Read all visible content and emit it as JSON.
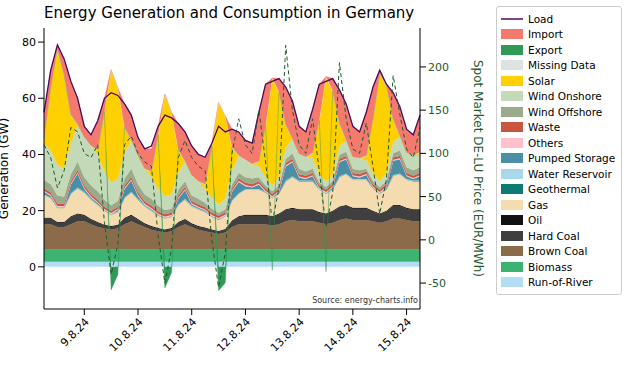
{
  "chart_data": {
    "type": "area",
    "title": "Energy Generation and Consumption in Germany",
    "y_label": "Generation (GW)",
    "y2_label": "Spot Market DE-LU Price (EUR/MWh)",
    "annotation": "Source: energy-charts.info",
    "stacked": true,
    "grid": false,
    "legend": "right",
    "ylim": [
      -15,
      85
    ],
    "yticks": [
      0,
      20,
      40,
      60,
      80
    ],
    "y2lim": [
      -80,
      245
    ],
    "y2ticks": [
      -50,
      0,
      50,
      100,
      150,
      200
    ],
    "categories": [
      null,
      null,
      null,
      null,
      null,
      null,
      "9.8.24",
      null,
      null,
      null,
      null,
      null,
      null,
      null,
      "10.8.24",
      null,
      null,
      null,
      null,
      null,
      null,
      null,
      "11.8.24",
      null,
      null,
      null,
      null,
      null,
      null,
      null,
      "12.8.24",
      null,
      null,
      null,
      null,
      null,
      null,
      null,
      "13.8.24",
      null,
      null,
      null,
      null,
      null,
      null,
      null,
      "14.8.24",
      null,
      null,
      null,
      null,
      null,
      null,
      null,
      "15.8.24",
      null,
      null
    ],
    "series": [
      {
        "name": "Load",
        "type": "line",
        "color": "#4b0a5e",
        "values": [
          55,
          70,
          79,
          74,
          66,
          60,
          50,
          47,
          52,
          60,
          62,
          61,
          58,
          54,
          46,
          42,
          43,
          50,
          54,
          53,
          51,
          48,
          43,
          40,
          39,
          44,
          50,
          48,
          49,
          48,
          45,
          44,
          55,
          65,
          66,
          67,
          64,
          59,
          50,
          48,
          56,
          65,
          66,
          67,
          63,
          58,
          50,
          48,
          55,
          64,
          70,
          65,
          62,
          57,
          49,
          47,
          54
        ]
      },
      {
        "name": "Import",
        "type": "area",
        "color": "#f47a6e",
        "values": [
          9.3,
          6.3,
          1.3,
          5.8,
          11.8,
          9.3,
          3.8,
          3.8,
          10.3,
          4.8,
          0,
          0,
          8.3,
          8.8,
          6.3,
          7,
          8,
          3,
          0,
          0,
          9.3,
          10.3,
          10.3,
          9.5,
          9.5,
          1,
          0,
          0,
          6.3,
          8.3,
          6.8,
          7.3,
          17.4,
          14.8,
          0,
          4.8,
          13.3,
          13.3,
          9.8,
          8.8,
          15.4,
          12.8,
          0,
          4.3,
          11.8,
          12.8,
          10.8,
          9.3,
          15.4,
          11.3,
          1.3,
          0.3,
          9.3,
          10.3,
          8.3,
          7.3,
          13.1
        ]
      },
      {
        "name": "Export",
        "type": "area",
        "color": "#2e9a55",
        "values": [
          0,
          0,
          0,
          0,
          0,
          0,
          0,
          0,
          0,
          0,
          -8.2,
          -2.7,
          0,
          0,
          0,
          0,
          0,
          0,
          -7.5,
          -2,
          0,
          0,
          0,
          0,
          0,
          0,
          -8.5,
          -5.7,
          0,
          0,
          0,
          0,
          0,
          0,
          -1.2,
          0,
          0,
          0,
          0,
          0,
          0,
          0,
          -1.7,
          0,
          0,
          0,
          0,
          0,
          0,
          0,
          0,
          0,
          0,
          0,
          0,
          0,
          0
        ]
      },
      {
        "name": "Missing Data",
        "type": "area",
        "color": "#dde3e3",
        "values": [
          0.3,
          0.3,
          0.3,
          0.3,
          0.3,
          0.3,
          0.3,
          0.3,
          0.3,
          0.3,
          0.3,
          0.3,
          0.3,
          0.3,
          0.3,
          0.3,
          0.3,
          0.3,
          0.3,
          0.3,
          0.3,
          0.3,
          0.3,
          0.3,
          0.3,
          0.3,
          0.3,
          0.3,
          0.3,
          0.3,
          0.3,
          0.3,
          0.3,
          0.3,
          0.3,
          0.3,
          0.3,
          0.3,
          0.3,
          0.3,
          0.3,
          0.3,
          0.3,
          0.3,
          0.3,
          0.3,
          0.3,
          0.3,
          0.3,
          0.3,
          0.3,
          0.3,
          0.3,
          0.3,
          0.3,
          0.3,
          0.3
        ]
      },
      {
        "name": "Solar",
        "type": "area",
        "color": "#ffd000",
        "values": [
          1.5,
          22,
          41,
          33,
          10,
          0,
          0,
          0,
          1.5,
          21,
          40,
          32,
          9,
          0,
          0,
          0,
          1.5,
          19,
          36,
          29,
          8,
          0,
          0,
          0,
          1.5,
          18,
          36,
          29,
          8,
          0,
          0,
          0,
          1.4,
          18,
          38,
          30,
          8,
          0,
          0,
          0,
          1.4,
          19,
          37,
          30,
          8,
          0,
          0,
          0,
          1.4,
          19,
          38,
          31,
          8,
          0,
          0,
          0,
          1.2
        ]
      },
      {
        "name": "Wind Onshore",
        "type": "area",
        "color": "#c4d9b8",
        "values": [
          13,
          12,
          11,
          10,
          11,
          13,
          14,
          14,
          13,
          10,
          8,
          8,
          9,
          10,
          10,
          9,
          8,
          6,
          5,
          5,
          6,
          7,
          7,
          6,
          5,
          4,
          3,
          4,
          5,
          6,
          6,
          5,
          4,
          3,
          2,
          3,
          4,
          5,
          5,
          5,
          4,
          3,
          2,
          2,
          3,
          4,
          4,
          4,
          3,
          3,
          2,
          3,
          4,
          5,
          5,
          5,
          4
        ]
      },
      {
        "name": "Wind Offshore",
        "type": "area",
        "color": "#9caa8c",
        "values": [
          3,
          3,
          3,
          2.5,
          2.5,
          3,
          3,
          3,
          3,
          2.5,
          2,
          2,
          2.5,
          3,
          3,
          2.5,
          2.5,
          2,
          1.5,
          1.5,
          2,
          2,
          2,
          2,
          1.5,
          1.5,
          1,
          1,
          1.5,
          2,
          2,
          2,
          1.5,
          1,
          1,
          1,
          1.5,
          2,
          2,
          1.5,
          1.5,
          1,
          1,
          1,
          1.5,
          1.5,
          1.5,
          1.5,
          1,
          1,
          1,
          1,
          1.5,
          2,
          2,
          2,
          2
        ]
      },
      {
        "name": "Waste",
        "type": "area",
        "color": "#c8553d",
        "values": [
          0.8,
          0.8,
          0.8,
          0.8,
          0.8,
          0.8,
          0.8,
          0.8,
          0.8,
          0.8,
          0.8,
          0.8,
          0.8,
          0.8,
          0.8,
          0.8,
          0.8,
          0.8,
          0.8,
          0.8,
          0.8,
          0.8,
          0.8,
          0.8,
          0.8,
          0.8,
          0.8,
          0.8,
          0.8,
          0.8,
          0.8,
          0.8,
          0.8,
          0.8,
          0.8,
          0.8,
          0.8,
          0.8,
          0.8,
          0.8,
          0.8,
          0.8,
          0.8,
          0.8,
          0.8,
          0.8,
          0.8,
          0.8,
          0.8,
          0.8,
          0.8,
          0.8,
          0.8,
          0.8,
          0.8,
          0.8,
          0.8
        ]
      },
      {
        "name": "Others",
        "type": "area",
        "color": "#ffc0cb",
        "values": [
          0.4,
          0.4,
          0.4,
          0.4,
          0.4,
          0.4,
          0.4,
          0.4,
          0.4,
          0.4,
          0.4,
          0.4,
          0.4,
          0.4,
          0.4,
          0.4,
          0.4,
          0.4,
          0.4,
          0.4,
          0.4,
          0.4,
          0.4,
          0.4,
          0.4,
          0.4,
          0.4,
          0.4,
          0.4,
          0.4,
          0.4,
          0.4,
          0.4,
          0.4,
          0.4,
          0.4,
          0.4,
          0.4,
          0.4,
          0.4,
          0.4,
          0.4,
          0.4,
          0.4,
          0.4,
          0.4,
          0.4,
          0.4,
          0.4,
          0.4,
          0.4,
          0.4,
          0.4,
          0.4,
          0.4,
          0.4,
          0.4
        ]
      },
      {
        "name": "Pumped Storage",
        "type": "area",
        "color": "#4b8fa6",
        "values": [
          1,
          0.5,
          0,
          0,
          3,
          5,
          1,
          0.5,
          0.5,
          0,
          0,
          0.5,
          3,
          4,
          1,
          0.3,
          0.3,
          0,
          0,
          0,
          2,
          3,
          0.5,
          0.3,
          0.3,
          0,
          0,
          0,
          3,
          4,
          1,
          0.5,
          1.5,
          0,
          0,
          0.5,
          5,
          5,
          1,
          0.5,
          1.5,
          0,
          0,
          0.5,
          5,
          5,
          1,
          0.5,
          1.5,
          0,
          0,
          0.5,
          5,
          5,
          1,
          0.5,
          1.5
        ]
      },
      {
        "name": "Water Reservoir",
        "type": "area",
        "color": "#a9d8ea",
        "values": [
          0.2,
          0.2,
          0.2,
          0.2,
          0.2,
          0.2,
          0.2,
          0.2,
          0.2,
          0.2,
          0.2,
          0.2,
          0.2,
          0.2,
          0.2,
          0.2,
          0.2,
          0.2,
          0.2,
          0.2,
          0.2,
          0.2,
          0.2,
          0.2,
          0.2,
          0.2,
          0.2,
          0.2,
          0.2,
          0.2,
          0.2,
          0.2,
          0.2,
          0.2,
          0.2,
          0.2,
          0.2,
          0.2,
          0.2,
          0.2,
          0.2,
          0.2,
          0.2,
          0.2,
          0.2,
          0.2,
          0.2,
          0.2,
          0.2,
          0.2,
          0.2,
          0.2,
          0.2,
          0.2,
          0.2,
          0.2,
          0.2
        ]
      },
      {
        "name": "Geothermal",
        "type": "area",
        "color": "#0b7b73",
        "values": [
          0.02,
          0.02,
          0.02,
          0.02,
          0.02,
          0.02,
          0.02,
          0.02,
          0.02,
          0.02,
          0.02,
          0.02,
          0.02,
          0.02,
          0.02,
          0.02,
          0.02,
          0.02,
          0.02,
          0.02,
          0.02,
          0.02,
          0.02,
          0.02,
          0.02,
          0.02,
          0.02,
          0.02,
          0.02,
          0.02,
          0.02,
          0.02,
          0.02,
          0.02,
          0.02,
          0.02,
          0.02,
          0.02,
          0.02,
          0.02,
          0.02,
          0.02,
          0.02,
          0.02,
          0.02,
          0.02,
          0.02,
          0.02,
          0.02,
          0.02,
          0.02,
          0.02,
          0.02,
          0.02,
          0.02,
          0.02,
          0.02
        ]
      },
      {
        "name": "Gas",
        "type": "area",
        "color": "#f5dcb0",
        "values": [
          8,
          7,
          5,
          5,
          8,
          9,
          8,
          7,
          6,
          5,
          4,
          4.5,
          7,
          8,
          7,
          6,
          5.5,
          4.5,
          4,
          4,
          6,
          7,
          6,
          6,
          5.5,
          4.5,
          4,
          4.5,
          7,
          8,
          9,
          9,
          9,
          8,
          6.5,
          7,
          10,
          11,
          10,
          10,
          10,
          8,
          7,
          7.5,
          10.5,
          11,
          10,
          10,
          10,
          8,
          7,
          7.5,
          10.5,
          11,
          10,
          10,
          10
        ]
      },
      {
        "name": "Oil",
        "type": "area",
        "color": "#111111",
        "values": [
          0.3,
          0.3,
          0.3,
          0.3,
          0.3,
          0.3,
          0.3,
          0.3,
          0.3,
          0.3,
          0.3,
          0.3,
          0.3,
          0.3,
          0.3,
          0.3,
          0.3,
          0.3,
          0.3,
          0.3,
          0.3,
          0.3,
          0.3,
          0.3,
          0.3,
          0.3,
          0.3,
          0.3,
          0.3,
          0.3,
          0.3,
          0.3,
          0.3,
          0.3,
          0.3,
          0.3,
          0.3,
          0.3,
          0.3,
          0.3,
          0.3,
          0.3,
          0.3,
          0.3,
          0.3,
          0.3,
          0.3,
          0.3,
          0.3,
          0.3,
          0.3,
          0.3,
          0.3,
          0.3,
          0.3,
          0.3,
          0.3
        ]
      },
      {
        "name": "Hard Coal",
        "type": "area",
        "color": "#3f3f3f",
        "values": [
          2,
          2,
          1.5,
          1.5,
          2.5,
          2.5,
          2,
          1.5,
          1.5,
          1,
          1,
          1,
          2,
          2,
          1.5,
          1,
          1,
          0.8,
          0.8,
          0.8,
          1.5,
          1.5,
          1,
          1,
          1,
          0.8,
          0.8,
          1,
          2,
          2.5,
          3,
          3,
          3,
          3,
          3,
          3.5,
          4,
          4,
          4,
          4,
          4,
          3.5,
          3.5,
          4,
          4.5,
          4.5,
          4,
          4,
          4,
          3.5,
          3,
          3.5,
          4.5,
          4.5,
          4,
          4,
          4
        ]
      },
      {
        "name": "Brown Coal",
        "type": "area",
        "color": "#8b6b4a",
        "values": [
          9,
          9,
          8,
          8,
          9,
          10,
          10,
          9,
          8,
          7.5,
          7,
          7.5,
          9,
          10,
          9,
          8,
          7,
          6.5,
          6,
          6.5,
          8,
          9,
          8,
          7,
          6.5,
          6,
          5.5,
          6,
          8,
          9,
          9,
          9,
          9,
          9,
          8.5,
          9,
          10,
          10.5,
          10,
          10,
          10,
          9.5,
          9,
          9.5,
          10.5,
          11,
          10.5,
          10.5,
          10.5,
          10,
          9.5,
          10,
          11,
          11,
          10.5,
          10,
          10
        ]
      },
      {
        "name": "Biomass",
        "type": "area",
        "color": "#3cb371",
        "values": [
          4.4,
          4.4,
          4.4,
          4.4,
          4.4,
          4.4,
          4.4,
          4.4,
          4.4,
          4.4,
          4.4,
          4.4,
          4.4,
          4.4,
          4.4,
          4.4,
          4.4,
          4.4,
          4.4,
          4.4,
          4.4,
          4.4,
          4.4,
          4.4,
          4.4,
          4.4,
          4.4,
          4.4,
          4.4,
          4.4,
          4.4,
          4.4,
          4.4,
          4.4,
          4.4,
          4.4,
          4.4,
          4.4,
          4.4,
          4.4,
          4.4,
          4.4,
          4.4,
          4.4,
          4.4,
          4.4,
          4.4,
          4.4,
          4.4,
          4.4,
          4.4,
          4.4,
          4.4,
          4.4,
          4.4,
          4.4,
          4.4
        ]
      },
      {
        "name": "Run-of-River",
        "type": "area",
        "color": "#b3ddf5",
        "values": [
          1.8,
          1.8,
          1.8,
          1.8,
          1.8,
          1.8,
          1.8,
          1.8,
          1.8,
          1.8,
          1.8,
          1.8,
          1.8,
          1.8,
          1.8,
          1.8,
          1.8,
          1.8,
          1.8,
          1.8,
          1.8,
          1.8,
          1.8,
          1.8,
          1.8,
          1.8,
          1.8,
          1.8,
          1.8,
          1.8,
          1.8,
          1.8,
          1.8,
          1.8,
          1.8,
          1.8,
          1.8,
          1.8,
          1.8,
          1.8,
          1.8,
          1.8,
          1.8,
          1.8,
          1.8,
          1.8,
          1.8,
          1.8,
          1.8,
          1.8,
          1.8,
          1.8,
          1.8,
          1.8,
          1.8,
          1.8,
          1.8
        ]
      },
      {
        "type": "line",
        "axis": "y2",
        "line_style": "dashed",
        "color": "#1d5a2c",
        "values": [
          110,
          95,
          60,
          80,
          130,
          125,
          100,
          95,
          110,
          20,
          -40,
          -5,
          110,
          120,
          100,
          90,
          85,
          5,
          -50,
          -10,
          95,
          115,
          95,
          85,
          80,
          0,
          -55,
          -15,
          100,
          140,
          110,
          100,
          150,
          90,
          20,
          60,
          225,
          150,
          110,
          100,
          140,
          80,
          15,
          55,
          205,
          140,
          105,
          100,
          135,
          85,
          30,
          70,
          190,
          145,
          105,
          95,
          130
        ]
      }
    ]
  }
}
